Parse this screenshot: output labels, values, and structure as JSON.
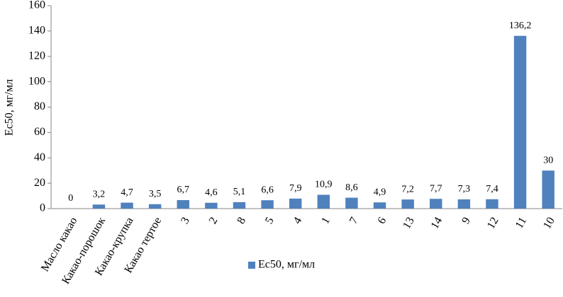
{
  "chart_data": {
    "type": "bar",
    "y_label": "Ec50, мг/мл",
    "categories": [
      "Масло какао",
      "Какао-порошок",
      "Какао-крупка",
      "Какао тертое",
      "3",
      "2",
      "8",
      "5",
      "4",
      "1",
      "7",
      "6",
      "13",
      "14",
      "9",
      "12",
      "11",
      "10"
    ],
    "series": [
      {
        "name": "Ec50, мг/мл",
        "color": "#4f81bd",
        "values": [
          0,
          3.2,
          4.7,
          3.5,
          6.7,
          4.6,
          5.1,
          6.6,
          7.9,
          10.9,
          8.6,
          4.9,
          7.2,
          7.7,
          7.3,
          7.4,
          136.2,
          30
        ],
        "value_labels": [
          "0",
          "3,2",
          "4,7",
          "3,5",
          "6,7",
          "4,6",
          "5,1",
          "6,6",
          "7,9",
          "10,9",
          "8,6",
          "4,9",
          "7,2",
          "7,7",
          "7,3",
          "7,4",
          "136,2",
          "30"
        ]
      }
    ],
    "ylim": [
      0,
      160
    ],
    "yticks": [
      0,
      20,
      40,
      60,
      80,
      100,
      120,
      140,
      160
    ],
    "grid": false,
    "legend": "bottom"
  }
}
